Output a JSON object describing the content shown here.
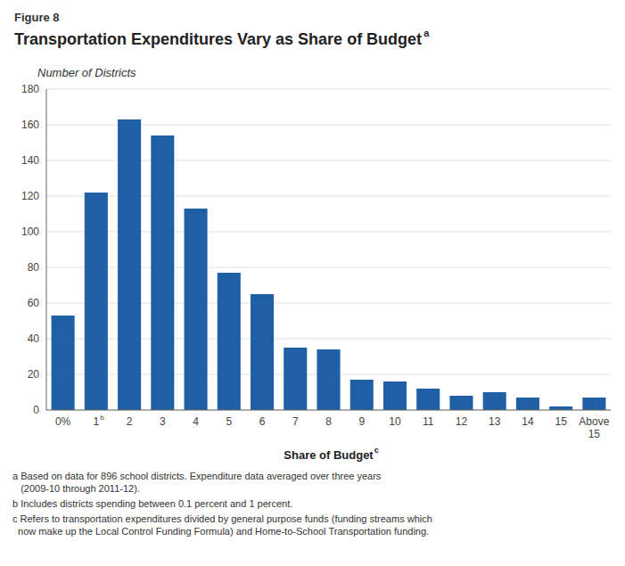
{
  "chart_data": {
    "type": "bar",
    "figure_label": "Figure 8",
    "title": "Transportation Expenditures Vary as Share of Budget",
    "title_superscript": "a",
    "ylabel": "Number of Districts",
    "xlabel": "Share of Budget",
    "xlabel_superscript": "c",
    "categories": [
      "0%",
      "1",
      "2",
      "3",
      "4",
      "5",
      "6",
      "7",
      "8",
      "9",
      "10",
      "11",
      "12",
      "13",
      "14",
      "15",
      "Above\n15"
    ],
    "category_superscripts": [
      null,
      "b",
      null,
      null,
      null,
      null,
      null,
      null,
      null,
      null,
      null,
      null,
      null,
      null,
      null,
      null,
      null
    ],
    "values": [
      53,
      122,
      163,
      154,
      113,
      77,
      65,
      35,
      34,
      17,
      16,
      12,
      8,
      10,
      7,
      2,
      7
    ],
    "color": "#1F5FA6",
    "ylim": [
      0,
      180
    ],
    "yticks": [
      0,
      20,
      40,
      60,
      80,
      100,
      120,
      140,
      160,
      180
    ],
    "grid": true,
    "footnotes": [
      "a Based on data for 896 school districts. Expenditure data averaged over three years\n   (2009-10 through 2011-12).",
      "b Includes districts spending between 0.1 percent and 1 percent.",
      "c Refers to transportation expenditures divided by general purpose funds (funding streams which\n  now make up the Local Control Funding Formula) and Home-to-School Transportation funding."
    ]
  }
}
